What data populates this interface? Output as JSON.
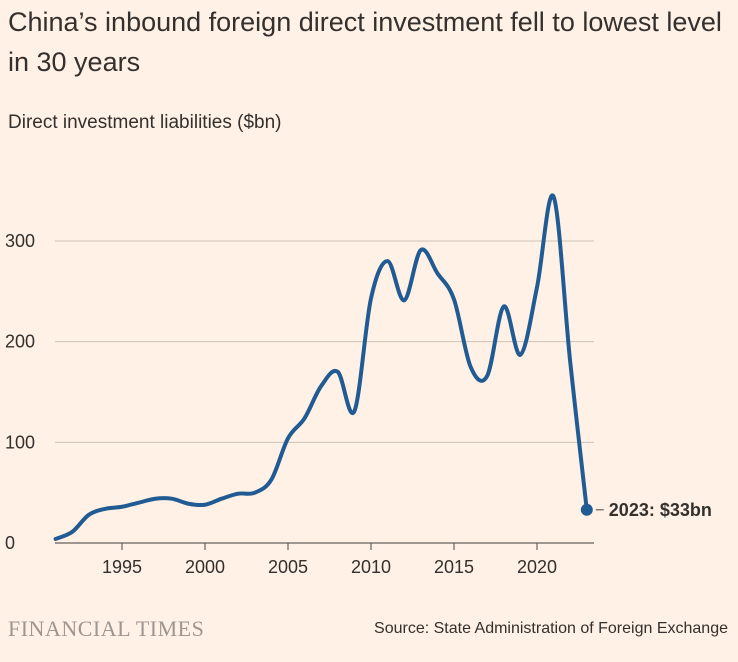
{
  "header": {
    "title": "China’s inbound foreign direct investment fell to lowest level in 30 years",
    "subtitle": "Direct investment liabilities ($bn)"
  },
  "footer": {
    "brand": "FINANCIAL TIMES",
    "source": "Source: State Administration of Foreign Exchange"
  },
  "colors": {
    "background": "#FFF1E5",
    "line": "#205B94",
    "grid": "#CEC3B9",
    "text": "#33302E"
  },
  "chart_data": {
    "type": "line",
    "title": "China’s inbound foreign direct investment fell to lowest level in 30 years",
    "ylabel": "Direct investment liabilities ($bn)",
    "xlabel": "",
    "x": [
      1991,
      1992,
      1993,
      1994,
      1995,
      1996,
      1997,
      1998,
      1999,
      2000,
      2001,
      2002,
      2003,
      2004,
      2005,
      2006,
      2007,
      2008,
      2009,
      2010,
      2011,
      2012,
      2013,
      2014,
      2015,
      2016,
      2017,
      2018,
      2019,
      2020,
      2021,
      2022,
      2023
    ],
    "series": [
      {
        "name": "Direct investment liabilities",
        "values": [
          4,
          11,
          28,
          34,
          36,
          40,
          44,
          44,
          39,
          38,
          44,
          49,
          50,
          63,
          104,
          124,
          156,
          170,
          131,
          243,
          280,
          241,
          291,
          268,
          242,
          175,
          166,
          235,
          187,
          254,
          344,
          180,
          33
        ]
      }
    ],
    "xlim": [
      1991,
      2023.5
    ],
    "ylim": [
      0,
      350
    ],
    "x_ticks": [
      1995,
      2000,
      2005,
      2010,
      2015,
      2020
    ],
    "y_ticks": [
      0,
      100,
      200,
      300
    ],
    "grid": true,
    "annotation": {
      "x": 2023,
      "y": 33,
      "label": "2023: $33bn"
    }
  }
}
